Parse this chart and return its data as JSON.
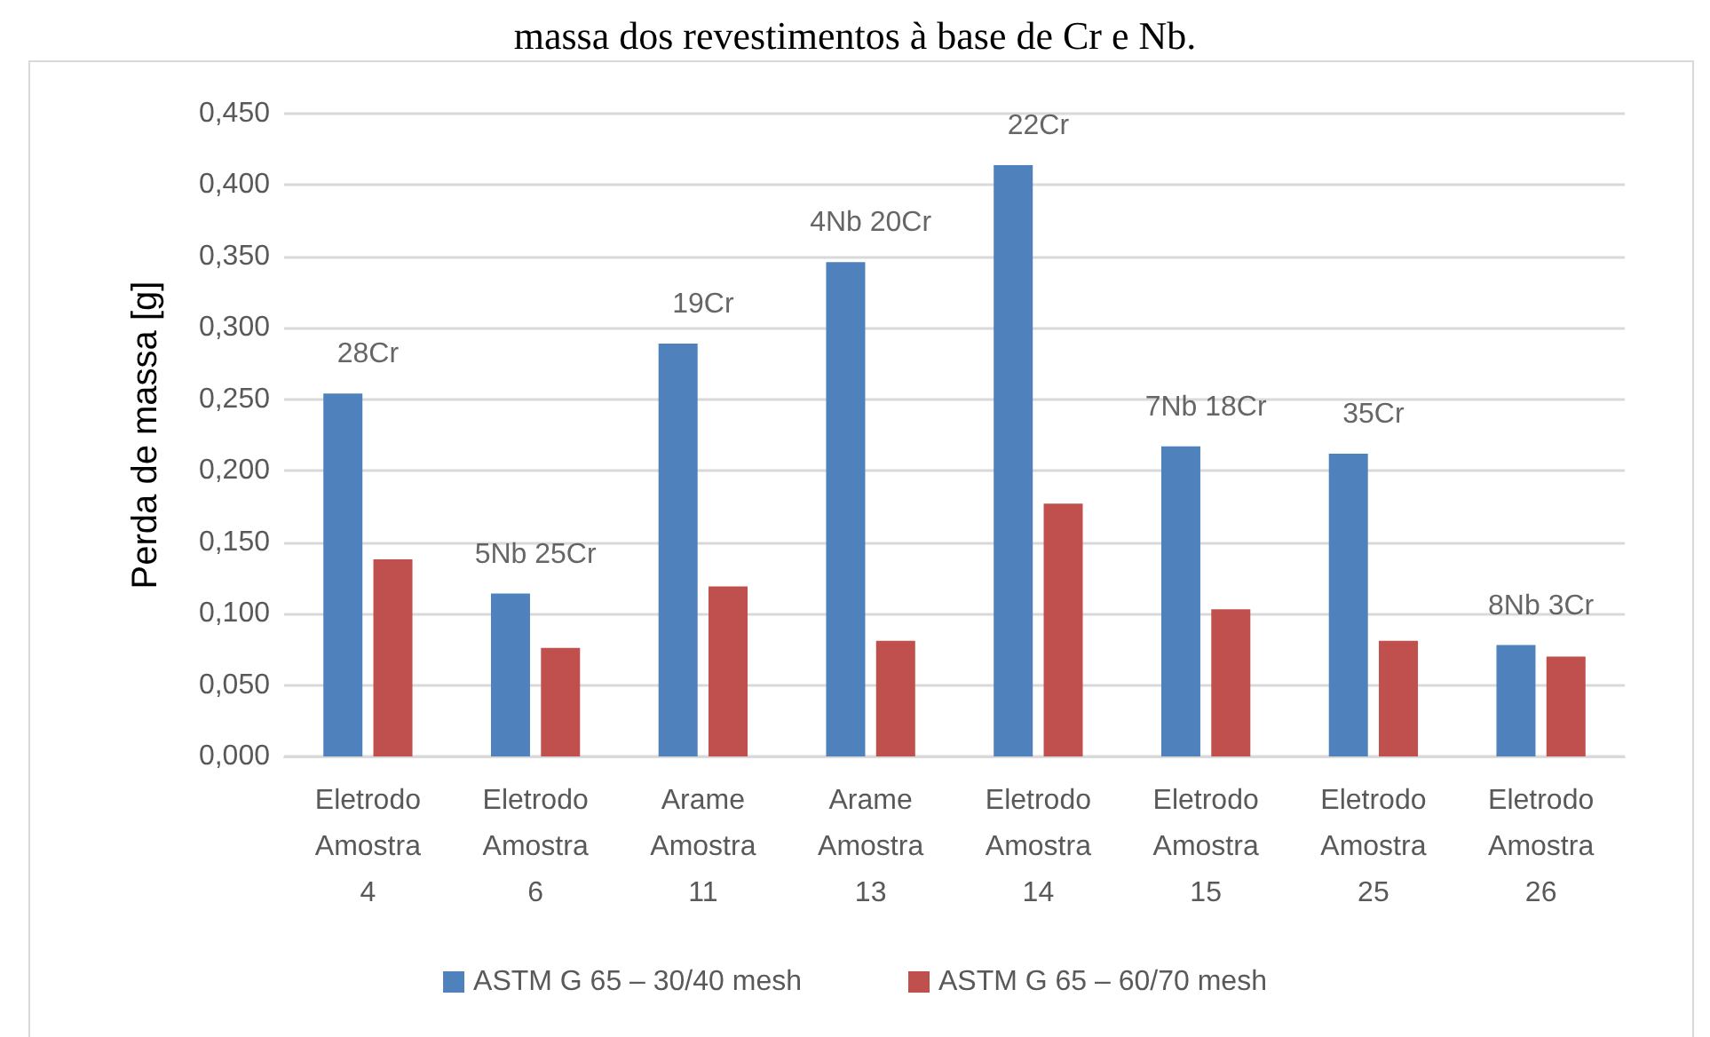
{
  "chart_data": {
    "type": "bar",
    "title": "massa dos revestimentos à base de Cr e Nb.",
    "ylabel": "Perda de massa [g]",
    "categories": [
      "Eletrodo\nAmostra\n4",
      "Eletrodo\nAmostra\n6",
      "Arame\nAmostra\n11",
      "Arame\nAmostra\n13",
      "Eletrodo\nAmostra\n14",
      "Eletrodo\nAmostra\n15",
      "Eletrodo\nAmostra\n25",
      "Eletrodo\nAmostra\n26"
    ],
    "series": [
      {
        "name": "ASTM G 65 – 30/40 mesh",
        "color": "#4f81bd",
        "values": [
          0.254,
          0.114,
          0.289,
          0.346,
          0.414,
          0.217,
          0.212,
          0.078
        ]
      },
      {
        "name": "ASTM G 65 – 60/70 mesh",
        "color": "#c0504d",
        "values": [
          0.138,
          0.076,
          0.119,
          0.081,
          0.177,
          0.103,
          0.081,
          0.07
        ]
      }
    ],
    "annotations": [
      {
        "text": "28Cr",
        "x": "Eletrodo\nAmostra\n4",
        "y": 0.254
      },
      {
        "text": "5Nb 25Cr",
        "x": "Eletrodo\nAmostra\n6",
        "y": 0.114
      },
      {
        "text": "19Cr",
        "x": "Arame\nAmostra\n11",
        "y": 0.289
      },
      {
        "text": "4Nb 20Cr",
        "x": "Arame\nAmostra\n13",
        "y": 0.346
      },
      {
        "text": "22Cr",
        "x": "Eletrodo\nAmostra\n14",
        "y": 0.414
      },
      {
        "text": "7Nb 18Cr",
        "x": "Eletrodo\nAmostra\n15",
        "y": 0.217
      },
      {
        "text": "35Cr",
        "x": "Eletrodo\nAmostra\n25",
        "y": 0.212
      },
      {
        "text": "8Nb 3Cr",
        "x": "Eletrodo\nAmostra\n26",
        "y": 0.078
      }
    ],
    "ylim": [
      0,
      0.45
    ],
    "yticks": [
      {
        "value": 0,
        "label": "0,000"
      },
      {
        "value": 0.05,
        "label": "0,050"
      },
      {
        "value": 0.1,
        "label": "0,100"
      },
      {
        "value": 0.15,
        "label": "0,150"
      },
      {
        "value": 0.2,
        "label": "0,200"
      },
      {
        "value": 0.25,
        "label": "0,250"
      },
      {
        "value": 0.3,
        "label": "0,300"
      },
      {
        "value": 0.35,
        "label": "0,350"
      },
      {
        "value": 0.4,
        "label": "0,400"
      },
      {
        "value": 0.45,
        "label": "0,450"
      }
    ],
    "grid": "y",
    "legend": "bottom"
  }
}
